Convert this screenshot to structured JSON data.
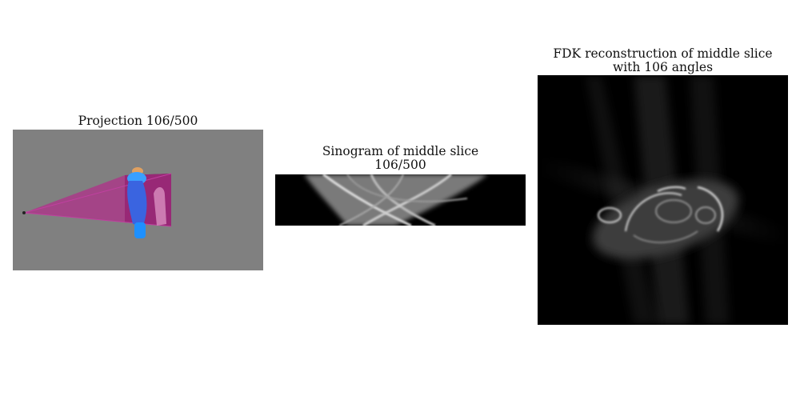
{
  "projection": {
    "title": "Projection 106/500"
  },
  "sinogram": {
    "title_line1": "Sinogram of middle slice",
    "title_line2": "106/500"
  },
  "fdk": {
    "title_line1": "FDK reconstruction of middle slice",
    "title_line2": "with 106 angles"
  },
  "colors": {
    "projection_background": "#808080",
    "beam_cone": "#b0308a",
    "detector": "#4a0030",
    "phantom_body": "#3a64e0",
    "phantom_head": "#e0a060",
    "image_background": "#000000"
  }
}
